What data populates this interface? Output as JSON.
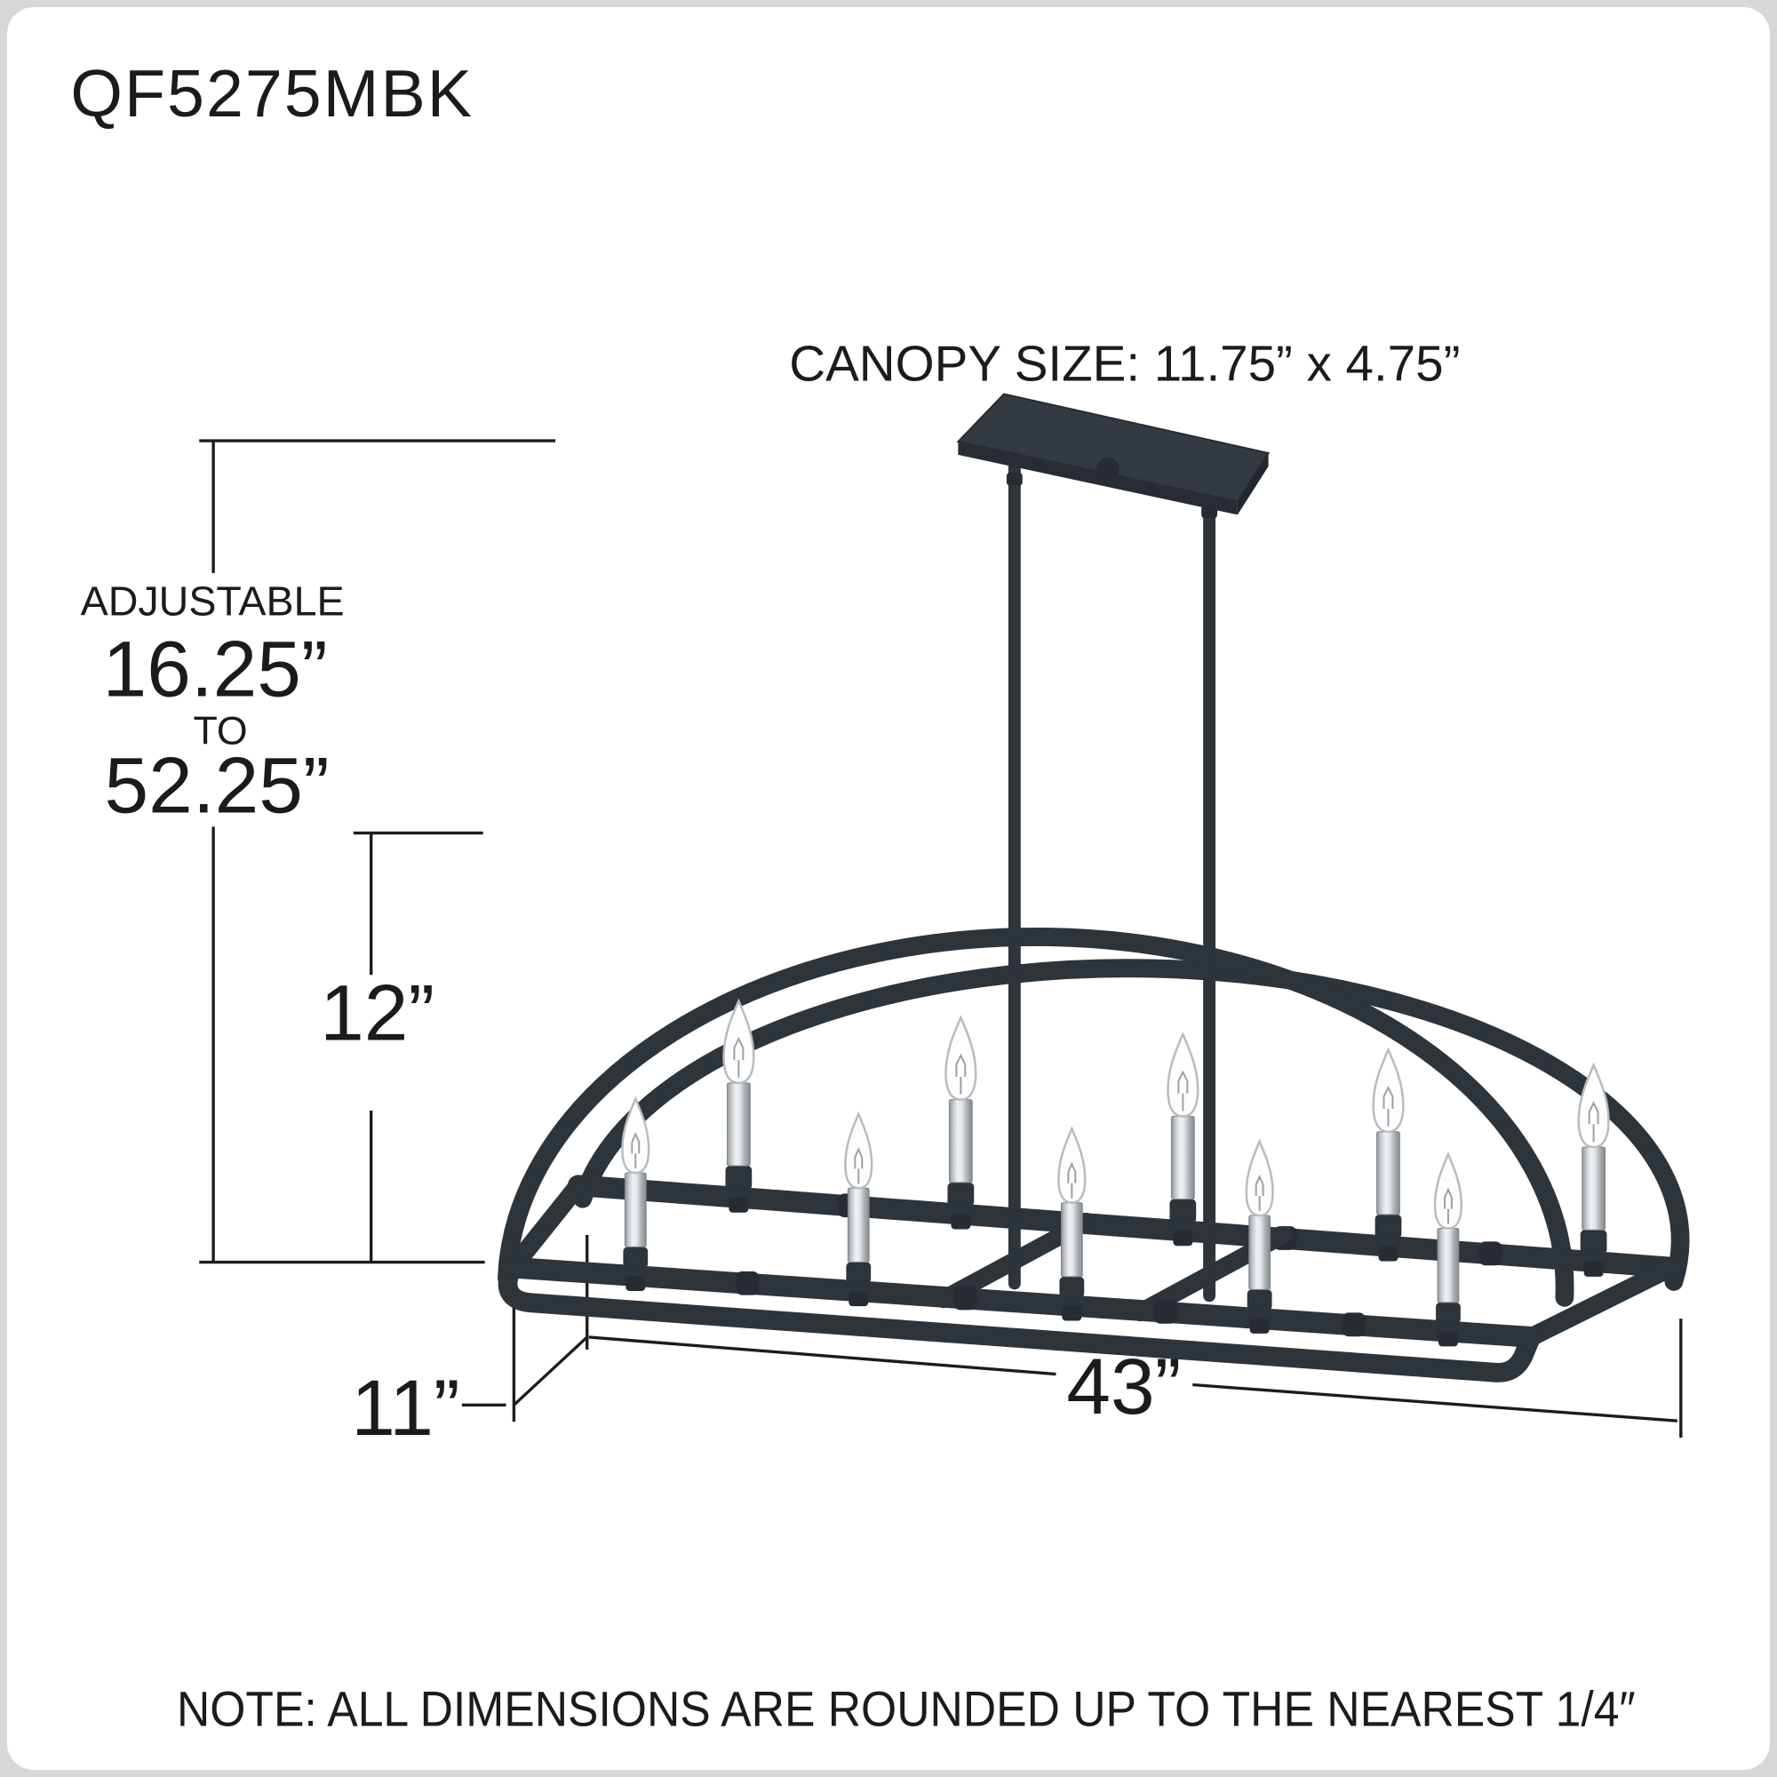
{
  "product": {
    "model": "QF5275MBK",
    "lights_count": 10,
    "colors": {
      "frame": "#2d343a",
      "frame_dark": "#262c31",
      "canopy_top": "#333a41",
      "canopy_front": "#272d33",
      "canopy_side": "#22282d",
      "nickel_light": "#f0f1f2",
      "nickel_mid": "#c6cacd",
      "nickel_dark": "#83898d",
      "bulb_fill": "#fdfdfd",
      "bulb_outline": "#b6bcc1",
      "filament": "#9aa0a5",
      "line_art": "#1c1c1c"
    }
  },
  "annotations": {
    "canopy_size": "CANOPY SIZE: 11.75” x 4.75”",
    "note": "NOTE:  ALL DIMENSIONS ARE ROUNDED UP TO THE NEAREST  1/4″"
  },
  "dimensions": {
    "adjustable_label": "ADJUSTABLE",
    "height_min": "16.25”",
    "to_label": "TO",
    "height_max": "52.25”",
    "body_height": "12”",
    "depth": "11”",
    "width": "43”"
  }
}
